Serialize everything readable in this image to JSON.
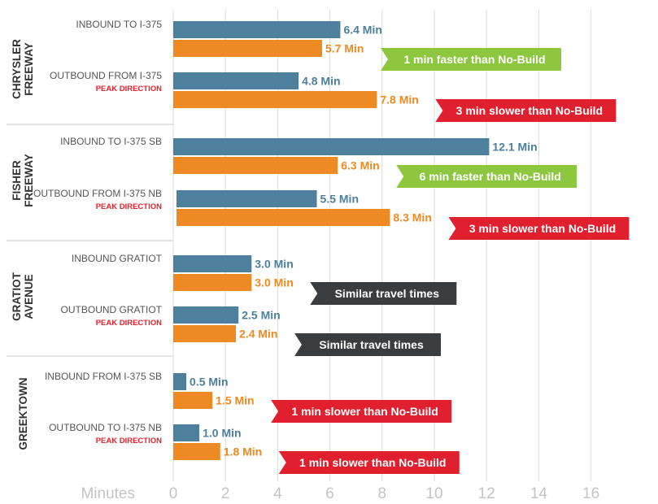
{
  "chart_data": {
    "type": "bar",
    "orientation": "horizontal",
    "xlabel": "Minutes",
    "xlim": [
      0,
      16
    ],
    "xticks": [
      0,
      2,
      4,
      6,
      8,
      10,
      12,
      14,
      16
    ],
    "grid": true,
    "colors": {
      "primary": "#4e7f9c",
      "secondary": "#ee8a24",
      "faster": "#8dc63f",
      "slower": "#e0202e",
      "similar": "#3a3d3f"
    },
    "groups": [
      {
        "name": "CHRYSLER\nFREEWAY",
        "rows": [
          {
            "label": "INBOUND TO I-375",
            "peak": "",
            "values": [
              6.4,
              5.7
            ],
            "value_labels": [
              "6.4 Min",
              "5.7 Min"
            ],
            "callout": {
              "text": "1 min faster than No-Build",
              "kind": "faster"
            }
          },
          {
            "label": "OUTBOUND FROM I-375",
            "peak": "PEAK DIRECTION",
            "values": [
              4.8,
              7.8
            ],
            "value_labels": [
              "4.8 Min",
              "7.8 Min"
            ],
            "callout": {
              "text": "3 min slower than No-Build",
              "kind": "slower"
            }
          }
        ]
      },
      {
        "name": "FISHER\nFREEWAY",
        "rows": [
          {
            "label": "INBOUND TO I-375 SB",
            "peak": "",
            "values": [
              12.1,
              6.3
            ],
            "value_labels": [
              "12.1 Min",
              "6.3 Min"
            ],
            "callout": {
              "text": "6 min faster than No-Build",
              "kind": "faster"
            }
          },
          {
            "label": "OUTBOUND FROM I-375 NB",
            "peak": "PEAK DIRECTION",
            "values": [
              5.5,
              8.3
            ],
            "value_labels": [
              "5.5 Min",
              "8.3 Min"
            ],
            "callout": {
              "text": "3 min slower than No-Build",
              "kind": "slower"
            }
          }
        ]
      },
      {
        "name": "GRATIOT\nAVENUE",
        "rows": [
          {
            "label": "INBOUND GRATIOT",
            "peak": "",
            "values": [
              3.0,
              3.0
            ],
            "value_labels": [
              "3.0 Min",
              "3.0 Min"
            ],
            "callout": {
              "text": "Similar travel times",
              "kind": "similar"
            }
          },
          {
            "label": "OUTBOUND GRATIOT",
            "peak": "PEAK DIRECTION",
            "values": [
              2.5,
              2.4
            ],
            "value_labels": [
              "2.5 Min",
              "2.4 Min"
            ],
            "callout": {
              "text": "Similar travel times",
              "kind": "similar"
            }
          }
        ]
      },
      {
        "name": "GREEKTOWN",
        "rows": [
          {
            "label": "INBOUND FROM I-375 SB",
            "peak": "",
            "values": [
              0.5,
              1.5
            ],
            "value_labels": [
              "0.5 Min",
              "1.5 Min"
            ],
            "callout": {
              "text": "1 min slower than No-Build",
              "kind": "slower"
            }
          },
          {
            "label": "OUTBOUND TO I-375 NB",
            "peak": "PEAK DIRECTION",
            "values": [
              1.0,
              1.8
            ],
            "value_labels": [
              "1.0 Min",
              "1.8 Min"
            ],
            "callout": {
              "text": "1 min slower than No-Build",
              "kind": "slower"
            }
          }
        ]
      }
    ]
  }
}
